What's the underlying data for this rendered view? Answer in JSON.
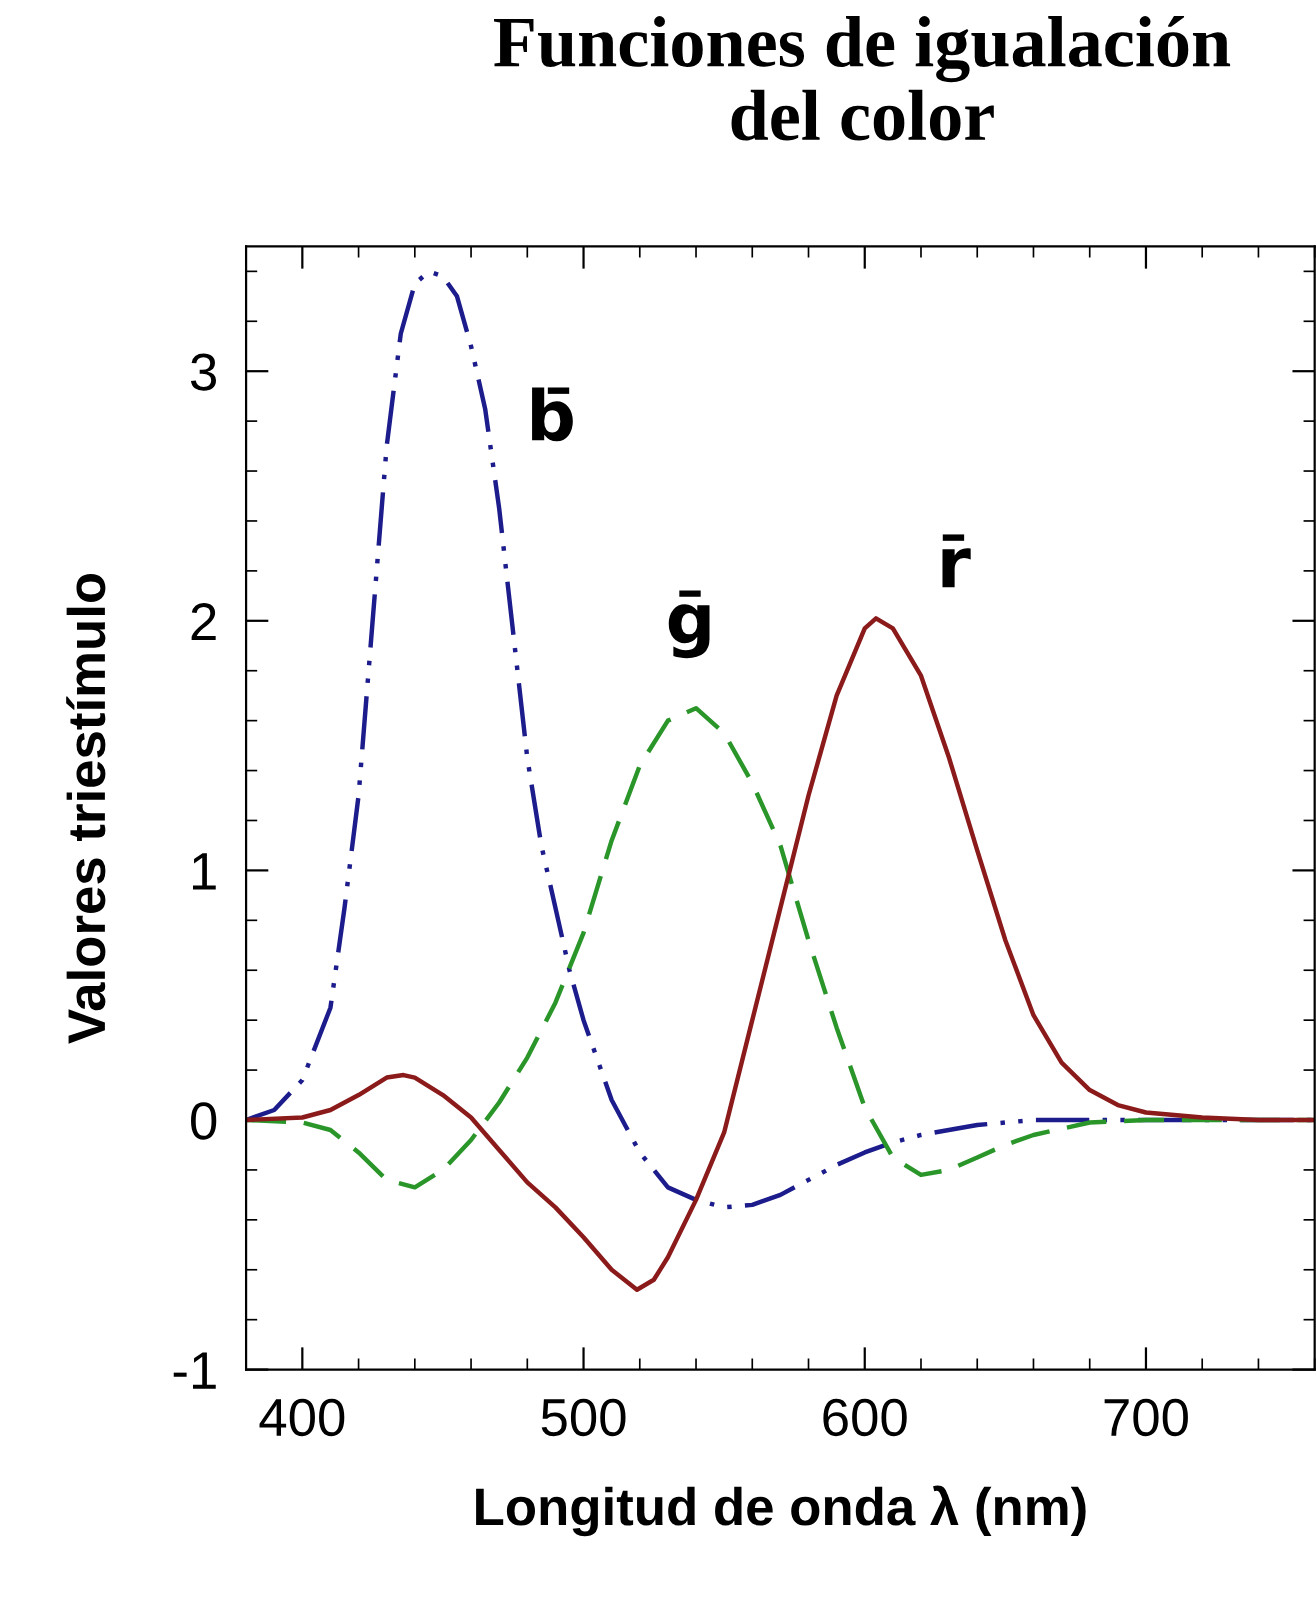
{
  "chart_data": {
    "type": "line",
    "title": "Funciones de igualación\ndel color",
    "xlabel": "Longitud de onda λ (nm)",
    "ylabel": "Valores triestímulo",
    "xlim": [
      380,
      760
    ],
    "ylim": [
      -1,
      3.5
    ],
    "xticks": [
      400,
      500,
      600,
      700
    ],
    "yticks": [
      -1,
      0,
      1,
      2,
      3
    ],
    "grid": false,
    "legend": false,
    "marker": "none",
    "series": [
      {
        "name": "b̄",
        "color": "#1c1c8c",
        "line_style": "dashdot",
        "x": [
          380,
          390,
          400,
          410,
          415,
          420,
          425,
          430,
          435,
          440,
          445,
          450,
          455,
          460,
          465,
          470,
          475,
          480,
          485,
          490,
          495,
          500,
          510,
          520,
          530,
          540,
          550,
          560,
          570,
          580,
          590,
          600,
          610,
          620,
          640,
          660,
          700,
          760
        ],
        "values": [
          0,
          0.04,
          0.16,
          0.45,
          0.85,
          1.3,
          2.0,
          2.7,
          3.15,
          3.35,
          3.4,
          3.38,
          3.3,
          3.1,
          2.85,
          2.45,
          1.95,
          1.45,
          1.1,
          0.85,
          0.6,
          0.4,
          0.08,
          -0.13,
          -0.27,
          -0.32,
          -0.35,
          -0.34,
          -0.3,
          -0.24,
          -0.18,
          -0.13,
          -0.09,
          -0.06,
          -0.02,
          0,
          0,
          0
        ]
      },
      {
        "name": "ḡ",
        "color": "#2a962a",
        "line_style": "dashed",
        "x": [
          380,
          400,
          410,
          420,
          430,
          440,
          450,
          460,
          470,
          480,
          490,
          500,
          510,
          520,
          530,
          540,
          550,
          560,
          570,
          580,
          590,
          600,
          610,
          620,
          630,
          640,
          650,
          660,
          680,
          700,
          760
        ],
        "values": [
          0,
          -0.01,
          -0.04,
          -0.13,
          -0.24,
          -0.27,
          -0.2,
          -0.08,
          0.07,
          0.25,
          0.47,
          0.75,
          1.12,
          1.42,
          1.6,
          1.65,
          1.55,
          1.35,
          1.1,
          0.72,
          0.37,
          0.05,
          -0.15,
          -0.22,
          -0.2,
          -0.15,
          -0.1,
          -0.06,
          -0.01,
          0,
          0
        ]
      },
      {
        "name": "r̄",
        "color": "#8b1a1a",
        "line_style": "solid",
        "x": [
          380,
          400,
          410,
          420,
          430,
          436,
          440,
          450,
          460,
          470,
          480,
          490,
          500,
          510,
          519,
          525,
          530,
          540,
          550,
          560,
          570,
          580,
          590,
          600,
          604,
          610,
          620,
          630,
          640,
          650,
          660,
          670,
          680,
          690,
          700,
          720,
          740,
          760
        ],
        "values": [
          0,
          0.01,
          0.04,
          0.1,
          0.17,
          0.18,
          0.17,
          0.1,
          0.01,
          -0.12,
          -0.25,
          -0.35,
          -0.47,
          -0.6,
          -0.68,
          -0.64,
          -0.55,
          -0.32,
          -0.05,
          0.4,
          0.85,
          1.3,
          1.7,
          1.97,
          2.01,
          1.97,
          1.78,
          1.45,
          1.08,
          0.72,
          0.42,
          0.23,
          0.12,
          0.06,
          0.03,
          0.01,
          0,
          0
        ]
      }
    ]
  }
}
